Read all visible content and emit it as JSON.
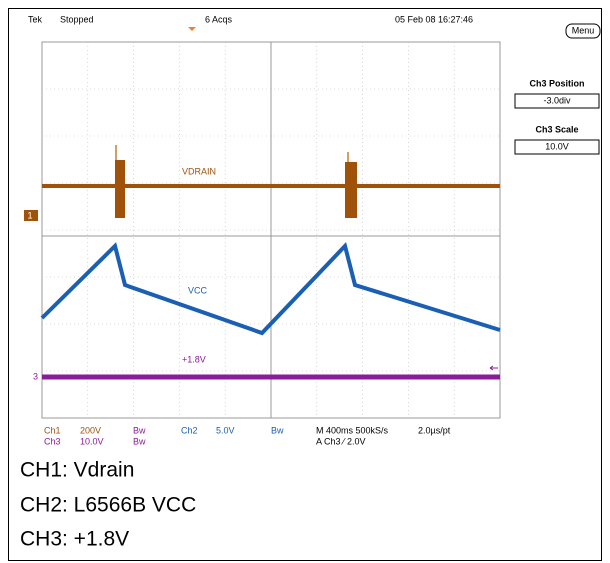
{
  "header": {
    "brand": "Tek",
    "state": "Stopped",
    "acquisitions": "6 Acqs",
    "timestamp": "05 Feb 08 16:27:46"
  },
  "side_panel": {
    "menu": "Menu",
    "position_label": "Ch3 Position",
    "position_value": "-3.0div",
    "scale_label": "Ch3 Scale",
    "scale_value": "10.0V"
  },
  "traces": {
    "ch1": "VDRAIN",
    "ch2": "VCC",
    "ch3": "+1.8V"
  },
  "markers": {
    "ch1": "1",
    "ch3": "3"
  },
  "status": {
    "row1": [
      "Ch1",
      "200V",
      "Bw",
      "Ch2",
      "5.0V",
      "Bw",
      "M 400ms 500kS/s",
      "2.0µs/pt"
    ],
    "row2": [
      "Ch3",
      "10.0V",
      "Bw",
      "A Ch3 ⁄ 2.0V"
    ]
  },
  "captions": [
    "CH1: Vdrain",
    "CH2: L6566B VCC",
    "CH3: +1.8V"
  ]
}
